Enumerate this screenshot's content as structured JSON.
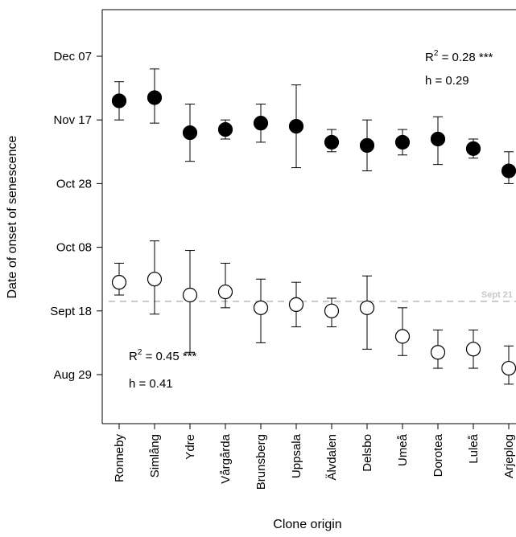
{
  "chart_data": {
    "type": "scatter",
    "title": "",
    "xlabel": "Clone origin",
    "ylabel": "Date of onset of senescence",
    "categories": [
      "Ronneby",
      "Simlång",
      "Ydre",
      "Vårgårda",
      "Brunsberg",
      "Uppsala",
      "Älvdalen",
      "Delsbo",
      "Umeå",
      "Dorotea",
      "Luleå",
      "Arjeplog"
    ],
    "y_ticks": [
      {
        "label": "Aug 29",
        "date": "2010-08-29"
      },
      {
        "label": "Sept 18",
        "date": "2010-09-18"
      },
      {
        "label": "Oct 08",
        "date": "2010-10-08"
      },
      {
        "label": "Oct 28",
        "date": "2010-10-28"
      },
      {
        "label": "Nov 17",
        "date": "2010-11-17"
      },
      {
        "label": "Dec 07",
        "date": "2010-12-07"
      }
    ],
    "ylim": [
      "2010-08-16",
      "2010-12-15"
    ],
    "reference_line": {
      "date": "2010-09-21",
      "label": "Sept 21",
      "color": "#c8c8c8",
      "style": "dashed"
    },
    "series": [
      {
        "fill": "#000000",
        "marker": "filled-circle",
        "points": [
          {
            "y": "2010-11-23",
            "low": "2010-11-17",
            "high": "2010-11-29"
          },
          {
            "y": "2010-11-24",
            "low": "2010-11-16",
            "high": "2010-12-03"
          },
          {
            "y": "2010-11-13",
            "low": "2010-11-04",
            "high": "2010-11-22"
          },
          {
            "y": "2010-11-14",
            "low": "2010-11-11",
            "high": "2010-11-17"
          },
          {
            "y": "2010-11-16",
            "low": "2010-11-10",
            "high": "2010-11-22"
          },
          {
            "y": "2010-11-15",
            "low": "2010-11-02",
            "high": "2010-11-28"
          },
          {
            "y": "2010-11-10",
            "low": "2010-11-07",
            "high": "2010-11-14"
          },
          {
            "y": "2010-11-09",
            "low": "2010-11-01",
            "high": "2010-11-17"
          },
          {
            "y": "2010-11-10",
            "low": "2010-11-06",
            "high": "2010-11-14"
          },
          {
            "y": "2010-11-11",
            "low": "2010-11-03",
            "high": "2010-11-18"
          },
          {
            "y": "2010-11-08",
            "low": "2010-11-05",
            "high": "2010-11-11"
          },
          {
            "y": "2010-11-01",
            "low": "2010-10-28",
            "high": "2010-11-07"
          }
        ]
      },
      {
        "fill": "#ffffff",
        "marker": "open-circle",
        "points": [
          {
            "y": "2010-09-27",
            "low": "2010-09-23",
            "high": "2010-10-03"
          },
          {
            "y": "2010-09-28",
            "low": "2010-09-17",
            "high": "2010-10-10"
          },
          {
            "y": "2010-09-23",
            "low": "2010-09-05",
            "high": "2010-10-07"
          },
          {
            "y": "2010-09-24",
            "low": "2010-09-19",
            "high": "2010-10-03"
          },
          {
            "y": "2010-09-19",
            "low": "2010-09-08",
            "high": "2010-09-28"
          },
          {
            "y": "2010-09-20",
            "low": "2010-09-13",
            "high": "2010-09-27"
          },
          {
            "y": "2010-09-18",
            "low": "2010-09-13",
            "high": "2010-09-22"
          },
          {
            "y": "2010-09-19",
            "low": "2010-09-06",
            "high": "2010-09-29"
          },
          {
            "y": "2010-09-10",
            "low": "2010-09-04",
            "high": "2010-09-19"
          },
          {
            "y": "2010-09-05",
            "low": "2010-08-31",
            "high": "2010-09-12"
          },
          {
            "y": "2010-09-06",
            "low": "2010-08-31",
            "high": "2010-09-12"
          },
          {
            "y": "2010-08-31",
            "low": "2010-08-26",
            "high": "2010-09-07"
          }
        ]
      }
    ],
    "annotations": [
      {
        "r2_prefix": "R",
        "r2_sup": "2",
        "r2_value": " = 0.28 ***",
        "h": "h = 0.29",
        "position": "top-right"
      },
      {
        "r2_prefix": "R",
        "r2_sup": "2",
        "r2_value": " = 0.45 ***",
        "h": "h = 0.41",
        "position": "bottom-left"
      }
    ]
  }
}
